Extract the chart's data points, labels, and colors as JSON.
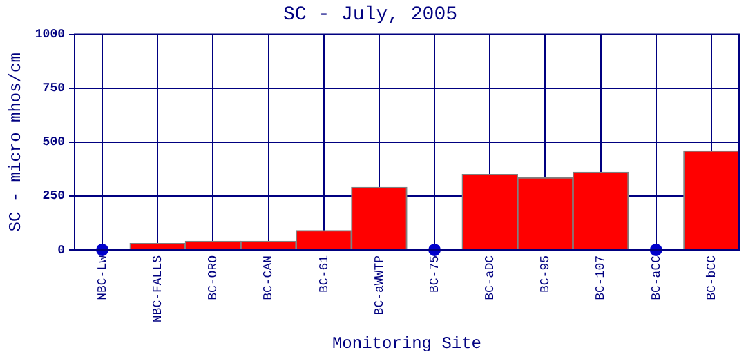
{
  "chart_data": {
    "type": "bar",
    "title": "SC - July, 2005",
    "xlabel": "Monitoring Site",
    "ylabel": "SC - micro mhos/cm",
    "categories": [
      "NBC-Lw",
      "NBC-FALLS",
      "BC-ORO",
      "BC-CAN",
      "BC-61",
      "BC-aWWTP",
      "BC-75",
      "BC-aDC",
      "BC-95",
      "BC-107",
      "BC-aCC",
      "BC-bCC"
    ],
    "series": [
      {
        "color": "#ff0000",
        "values": [
          null,
          30,
          40,
          40,
          90,
          290,
          null,
          350,
          335,
          360,
          null,
          460
        ]
      },
      {
        "type": "scatter",
        "color": "#0000cc",
        "marker": "circle",
        "values": [
          0,
          null,
          null,
          null,
          null,
          null,
          0,
          null,
          null,
          null,
          0,
          null
        ]
      }
    ],
    "ylim": [
      0,
      1000
    ],
    "yticks": [
      0,
      250,
      500,
      750,
      1000
    ],
    "grid": true,
    "legend": false
  }
}
